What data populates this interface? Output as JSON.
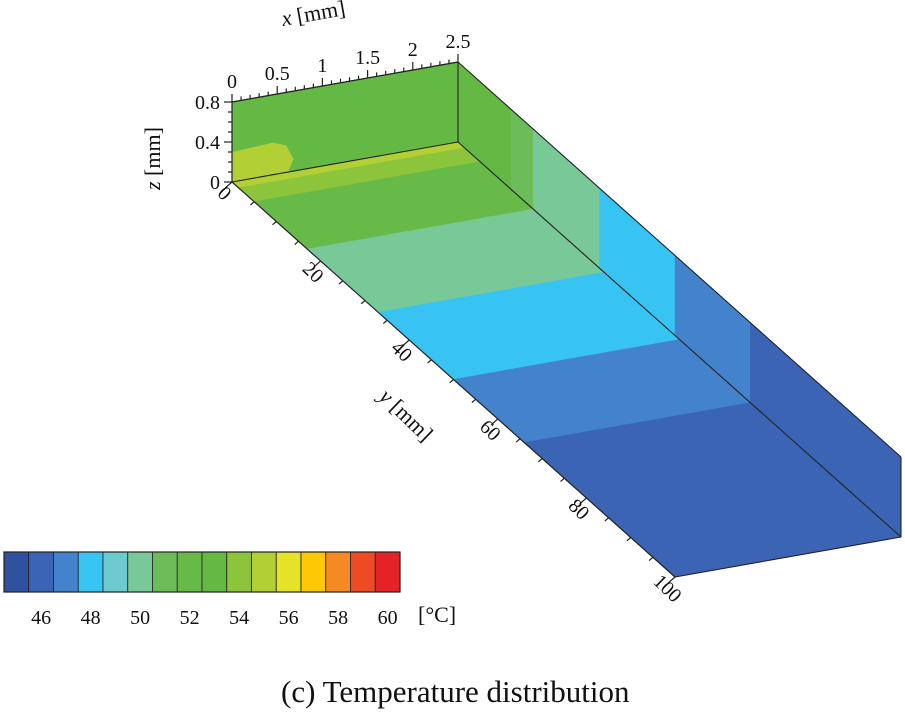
{
  "chart_data": {
    "type": "heatmap",
    "title": "Temperature distribution",
    "caption": "(c) Temperature distribution",
    "x_axis": {
      "label_var": "x",
      "label_unit": " [mm]",
      "ticks": [
        "0",
        "0.5",
        "1",
        "1.5",
        "2",
        "2.5"
      ],
      "range": [
        0,
        2.5
      ]
    },
    "y_axis": {
      "label_var": "y",
      "label_unit": " [mm]",
      "ticks": [
        "0",
        "20",
        "40",
        "60",
        "80",
        "100"
      ],
      "range": [
        0,
        100
      ]
    },
    "z_axis": {
      "label_var": "z",
      "label_unit": " [mm]",
      "ticks": [
        "0",
        "0.4",
        "0.8"
      ],
      "range": [
        0,
        0.8
      ]
    },
    "colorbar": {
      "unit": "[°C]",
      "ticks": [
        "46",
        "48",
        "50",
        "52",
        "54",
        "56",
        "58",
        "60"
      ],
      "levels": [
        45,
        46,
        47,
        48,
        49,
        50,
        51,
        52,
        53,
        54,
        55,
        56,
        57,
        58,
        59,
        60,
        61
      ],
      "colors": [
        "#3050a0",
        "#3b64b4",
        "#4383cc",
        "#38c4f2",
        "#6ccad0",
        "#78c898",
        "#6cbd5a",
        "#68ba48",
        "#64b844",
        "#8cc43c",
        "#b2cf36",
        "#e6e228",
        "#fdc805",
        "#f58a25",
        "#ee4a24",
        "#e62229"
      ]
    },
    "surface_bands": [
      {
        "y_range": [
          0,
          1.5
        ],
        "temperature": 55.5
      },
      {
        "y_range": [
          1.5,
          5
        ],
        "temperature": 54
      },
      {
        "y_range": [
          5,
          17
        ],
        "temperature": 52.5
      },
      {
        "y_range": [
          17,
          33
        ],
        "temperature": 50
      },
      {
        "y_range": [
          33,
          50
        ],
        "temperature": 48.5
      },
      {
        "y_range": [
          50,
          66
        ],
        "temperature": 47.5
      },
      {
        "y_range": [
          66,
          83
        ],
        "temperature": 46.5
      },
      {
        "y_range": [
          83,
          100
        ],
        "temperature": 46
      }
    ],
    "side_wall_bands": [
      {
        "y_range": [
          0,
          12
        ],
        "temperature": 53
      },
      {
        "y_range": [
          12,
          17
        ],
        "temperature": 51
      },
      {
        "y_range": [
          17,
          32
        ],
        "temperature": 50
      },
      {
        "y_range": [
          32,
          49
        ],
        "temperature": 48.5
      },
      {
        "y_range": [
          49,
          66
        ],
        "temperature": 47.5
      },
      {
        "y_range": [
          66,
          83
        ],
        "temperature": 46.5
      },
      {
        "y_range": [
          83,
          100
        ],
        "temperature": 46
      }
    ],
    "inlet_face": {
      "y": 0,
      "base_temperature": 53,
      "hot_spot_temperature": 55.5
    }
  }
}
